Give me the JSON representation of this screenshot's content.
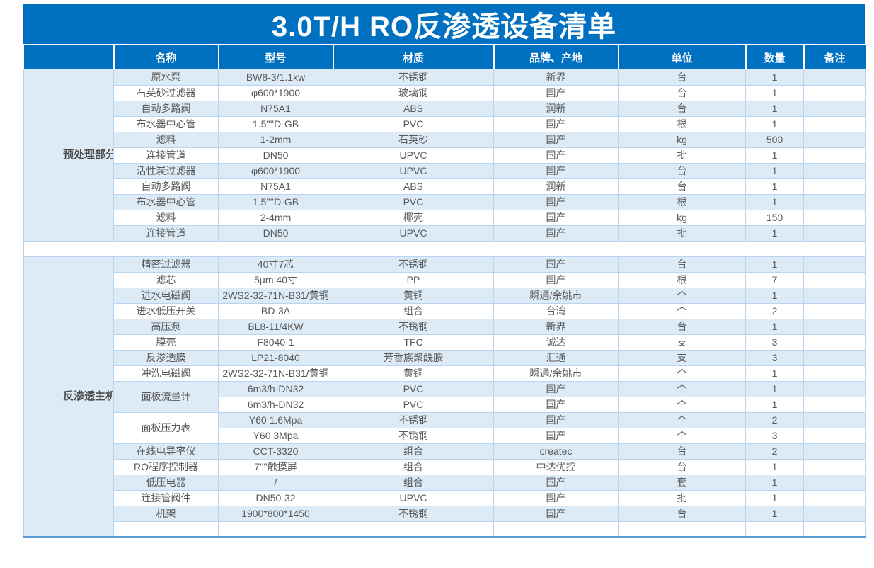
{
  "title": "3.0T/H RO反渗透设备清单",
  "columns": [
    "名称",
    "型号",
    "材质",
    "品牌、产地",
    "单位",
    "数量",
    "备注"
  ],
  "colors": {
    "header_blue": "#0070C0",
    "row_alt_blue": "#DDEBF7",
    "grid_line": "#B9D5F1",
    "text_gray": "#595959",
    "table_bottom_border": "#5B9BD5"
  },
  "sections": [
    {
      "label": "预处理部分",
      "rows": [
        {
          "name": "原水泵",
          "model": "BW8-3/1.1kw",
          "material": "不锈钢",
          "brand": "新界",
          "unit": "台",
          "qty": "1",
          "note": ""
        },
        {
          "name": "石英砂过滤器",
          "model": "φ600*1900",
          "material": "玻璃钢",
          "brand": "国产",
          "unit": "台",
          "qty": "1",
          "note": ""
        },
        {
          "name": "自动多路阀",
          "model": "N75A1",
          "material": "ABS",
          "brand": "润新",
          "unit": "台",
          "qty": "1",
          "note": ""
        },
        {
          "name": "布水器中心管",
          "model": "1.5''''D-GB",
          "material": "PVC",
          "brand": "国产",
          "unit": "根",
          "qty": "1",
          "note": ""
        },
        {
          "name": "滤料",
          "model": "1-2mm",
          "material": "石英砂",
          "brand": "国产",
          "unit": "kg",
          "qty": "500",
          "note": ""
        },
        {
          "name": "连接管道",
          "model": "DN50",
          "material": "UPVC",
          "brand": "国产",
          "unit": "批",
          "qty": "1",
          "note": ""
        },
        {
          "name": "活性炭过滤器",
          "model": "φ600*1900",
          "material": "UPVC",
          "brand": "国产",
          "unit": "台",
          "qty": "1",
          "note": ""
        },
        {
          "name": "自动多路阀",
          "model": "N75A1",
          "material": "ABS",
          "brand": "润新",
          "unit": "台",
          "qty": "1",
          "note": ""
        },
        {
          "name": "布水器中心管",
          "model": "1.5''''D-GB",
          "material": "PVC",
          "brand": "国产",
          "unit": "根",
          "qty": "1",
          "note": ""
        },
        {
          "name": "滤料",
          "model": "2-4mm",
          "material": "椰壳",
          "brand": "国产",
          "unit": "kg",
          "qty": "150",
          "note": ""
        },
        {
          "name": "连接管道",
          "model": "DN50",
          "material": "UPVC",
          "brand": "国产",
          "unit": "批",
          "qty": "1",
          "note": ""
        }
      ]
    },
    {
      "label": "反渗透主机部分",
      "rows": [
        {
          "name": "精密过滤器",
          "model": "40寸7芯",
          "material": "不锈钢",
          "brand": "国产",
          "unit": "台",
          "qty": "1",
          "note": ""
        },
        {
          "name": "滤芯",
          "model": "5μm 40寸",
          "material": "PP",
          "brand": "国产",
          "unit": "根",
          "qty": "7",
          "note": ""
        },
        {
          "name": "进水电磁阀",
          "model": "2WS2-32-71N-B31/黄铜",
          "material": "黄铜",
          "brand": "瞬通/余姚市",
          "unit": "个",
          "qty": "1",
          "note": ""
        },
        {
          "name": "进水低压开关",
          "model": "BD-3A",
          "material": "组合",
          "brand": "台湾",
          "unit": "个",
          "qty": "2",
          "note": ""
        },
        {
          "name": "高压泵",
          "model": "BL8-11/4KW",
          "material": "不锈钢",
          "brand": "新界",
          "unit": "台",
          "qty": "1",
          "note": ""
        },
        {
          "name": "膜壳",
          "model": "F8040-1",
          "material": "TFC",
          "brand": "诚达",
          "unit": "支",
          "qty": "3",
          "note": ""
        },
        {
          "name": "反渗透膜",
          "model": "LP21-8040",
          "material": "芳香族聚酰胺",
          "brand": "汇通",
          "unit": "支",
          "qty": "3",
          "note": ""
        },
        {
          "name": "冲洗电磁阀",
          "model": "2WS2-32-71N-B31/黄铜",
          "material": "黄铜",
          "brand": "瞬通/余姚市",
          "unit": "个",
          "qty": "1",
          "note": ""
        },
        {
          "name": "面板流量计",
          "name_rowspan": 2,
          "name_shade": "shade",
          "model": "6m3/h-DN32",
          "material": "PVC",
          "brand": "国产",
          "unit": "个",
          "qty": "1",
          "note": ""
        },
        {
          "name": null,
          "model": "6m3/h-DN32",
          "material": "PVC",
          "brand": "国产",
          "unit": "个",
          "qty": "1",
          "note": ""
        },
        {
          "name": "面板压力表",
          "name_rowspan": 2,
          "name_shade": "white",
          "model": "Y60 1.6Mpa",
          "material": "不锈钢",
          "brand": "国产",
          "unit": "个",
          "qty": "2",
          "note": ""
        },
        {
          "name": null,
          "model": "Y60 3Mpa",
          "material": "不锈钢",
          "brand": "国产",
          "unit": "个",
          "qty": "3",
          "note": ""
        },
        {
          "name": "在线电导率仪",
          "model": "CCT-3320",
          "material": "组合",
          "brand": "createc",
          "unit": "台",
          "qty": "2",
          "note": ""
        },
        {
          "name": "RO程序控制器",
          "model": "7''''触摸屏",
          "material": "组合",
          "brand": "中达优控",
          "unit": "台",
          "qty": "1",
          "note": ""
        },
        {
          "name": "低压电器",
          "model": "/",
          "material": "组合",
          "brand": "国产",
          "unit": "套",
          "qty": "1",
          "note": ""
        },
        {
          "name": "连接管阀件",
          "model": "DN50-32",
          "material": "UPVC",
          "brand": "国产",
          "unit": "批",
          "qty": "1",
          "note": ""
        },
        {
          "name": "机架",
          "model": "1900*800*1450",
          "material": "不锈钢",
          "brand": "国产",
          "unit": "台",
          "qty": "1",
          "note": ""
        },
        {
          "name": "",
          "model": "",
          "material": "",
          "brand": "",
          "unit": "",
          "qty": "",
          "note": ""
        }
      ]
    }
  ]
}
